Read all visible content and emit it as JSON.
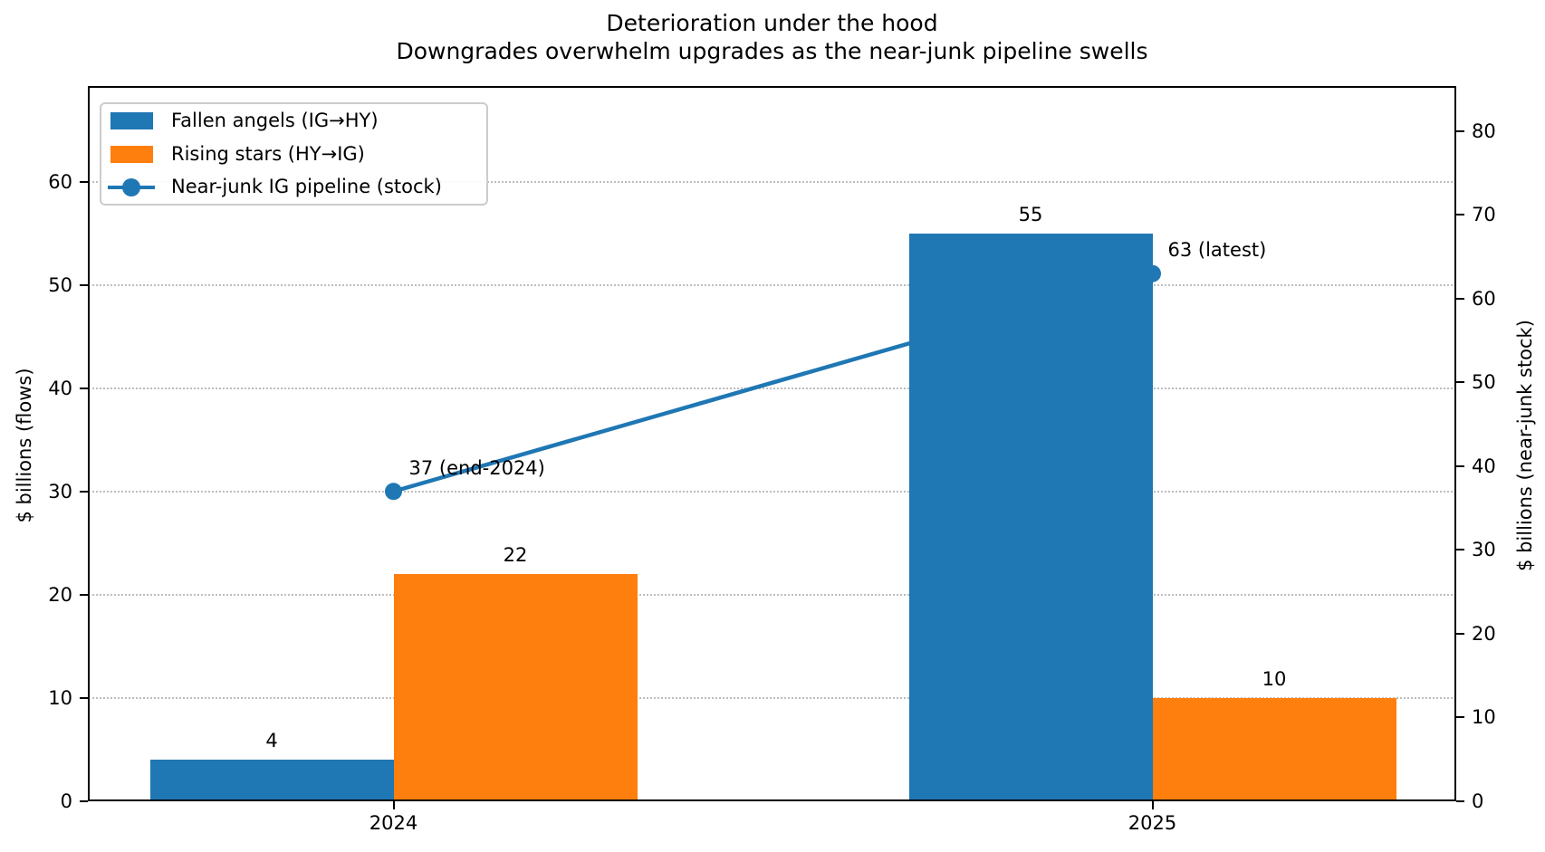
{
  "title": {
    "line1": "Deterioration under the hood",
    "line2": "Downgrades overwhelm upgrades as the near-junk pipeline swells"
  },
  "chart_data": {
    "type": "bar",
    "categories": [
      "2024",
      "2025"
    ],
    "series": [
      {
        "name": "Fallen angels (IG→HY)",
        "kind": "bar",
        "axis": "left",
        "color": "#1f77b4",
        "values": [
          4,
          55
        ]
      },
      {
        "name": "Rising stars (HY→IG)",
        "kind": "bar",
        "axis": "left",
        "color": "#ff7f0e",
        "values": [
          22,
          10
        ]
      },
      {
        "name": "Near-junk IG pipeline (stock)",
        "kind": "line",
        "axis": "right",
        "color": "#1f77b4",
        "values": [
          37,
          63
        ],
        "point_labels": [
          "37 (end-2024)",
          "63 (latest)"
        ]
      }
    ],
    "bar_value_labels": [
      [
        "4",
        "55"
      ],
      [
        "22",
        "10"
      ]
    ],
    "left_axis": {
      "label": "$ billions (flows)",
      "ticks": [
        0,
        10,
        20,
        30,
        40,
        50,
        60
      ],
      "range": [
        0,
        69.3
      ]
    },
    "right_axis": {
      "label": "$ billions (near-junk stock)",
      "ticks": [
        0,
        10,
        20,
        30,
        40,
        50,
        60,
        70,
        80
      ],
      "range": [
        0,
        85.4
      ]
    },
    "title": "Deterioration under the hood",
    "subtitle": "Downgrades overwhelm upgrades as the near-junk pipeline swells",
    "xlabel": "",
    "legend_position": "upper left",
    "grid": {
      "on": true,
      "style": "dotted",
      "follows": "left-axis-ticks"
    }
  },
  "colors": {
    "blue": "#1f77b4",
    "orange": "#ff7f0e",
    "grid": "#bdbdbd",
    "text": "#000000",
    "legend_border": "#cccccc"
  }
}
